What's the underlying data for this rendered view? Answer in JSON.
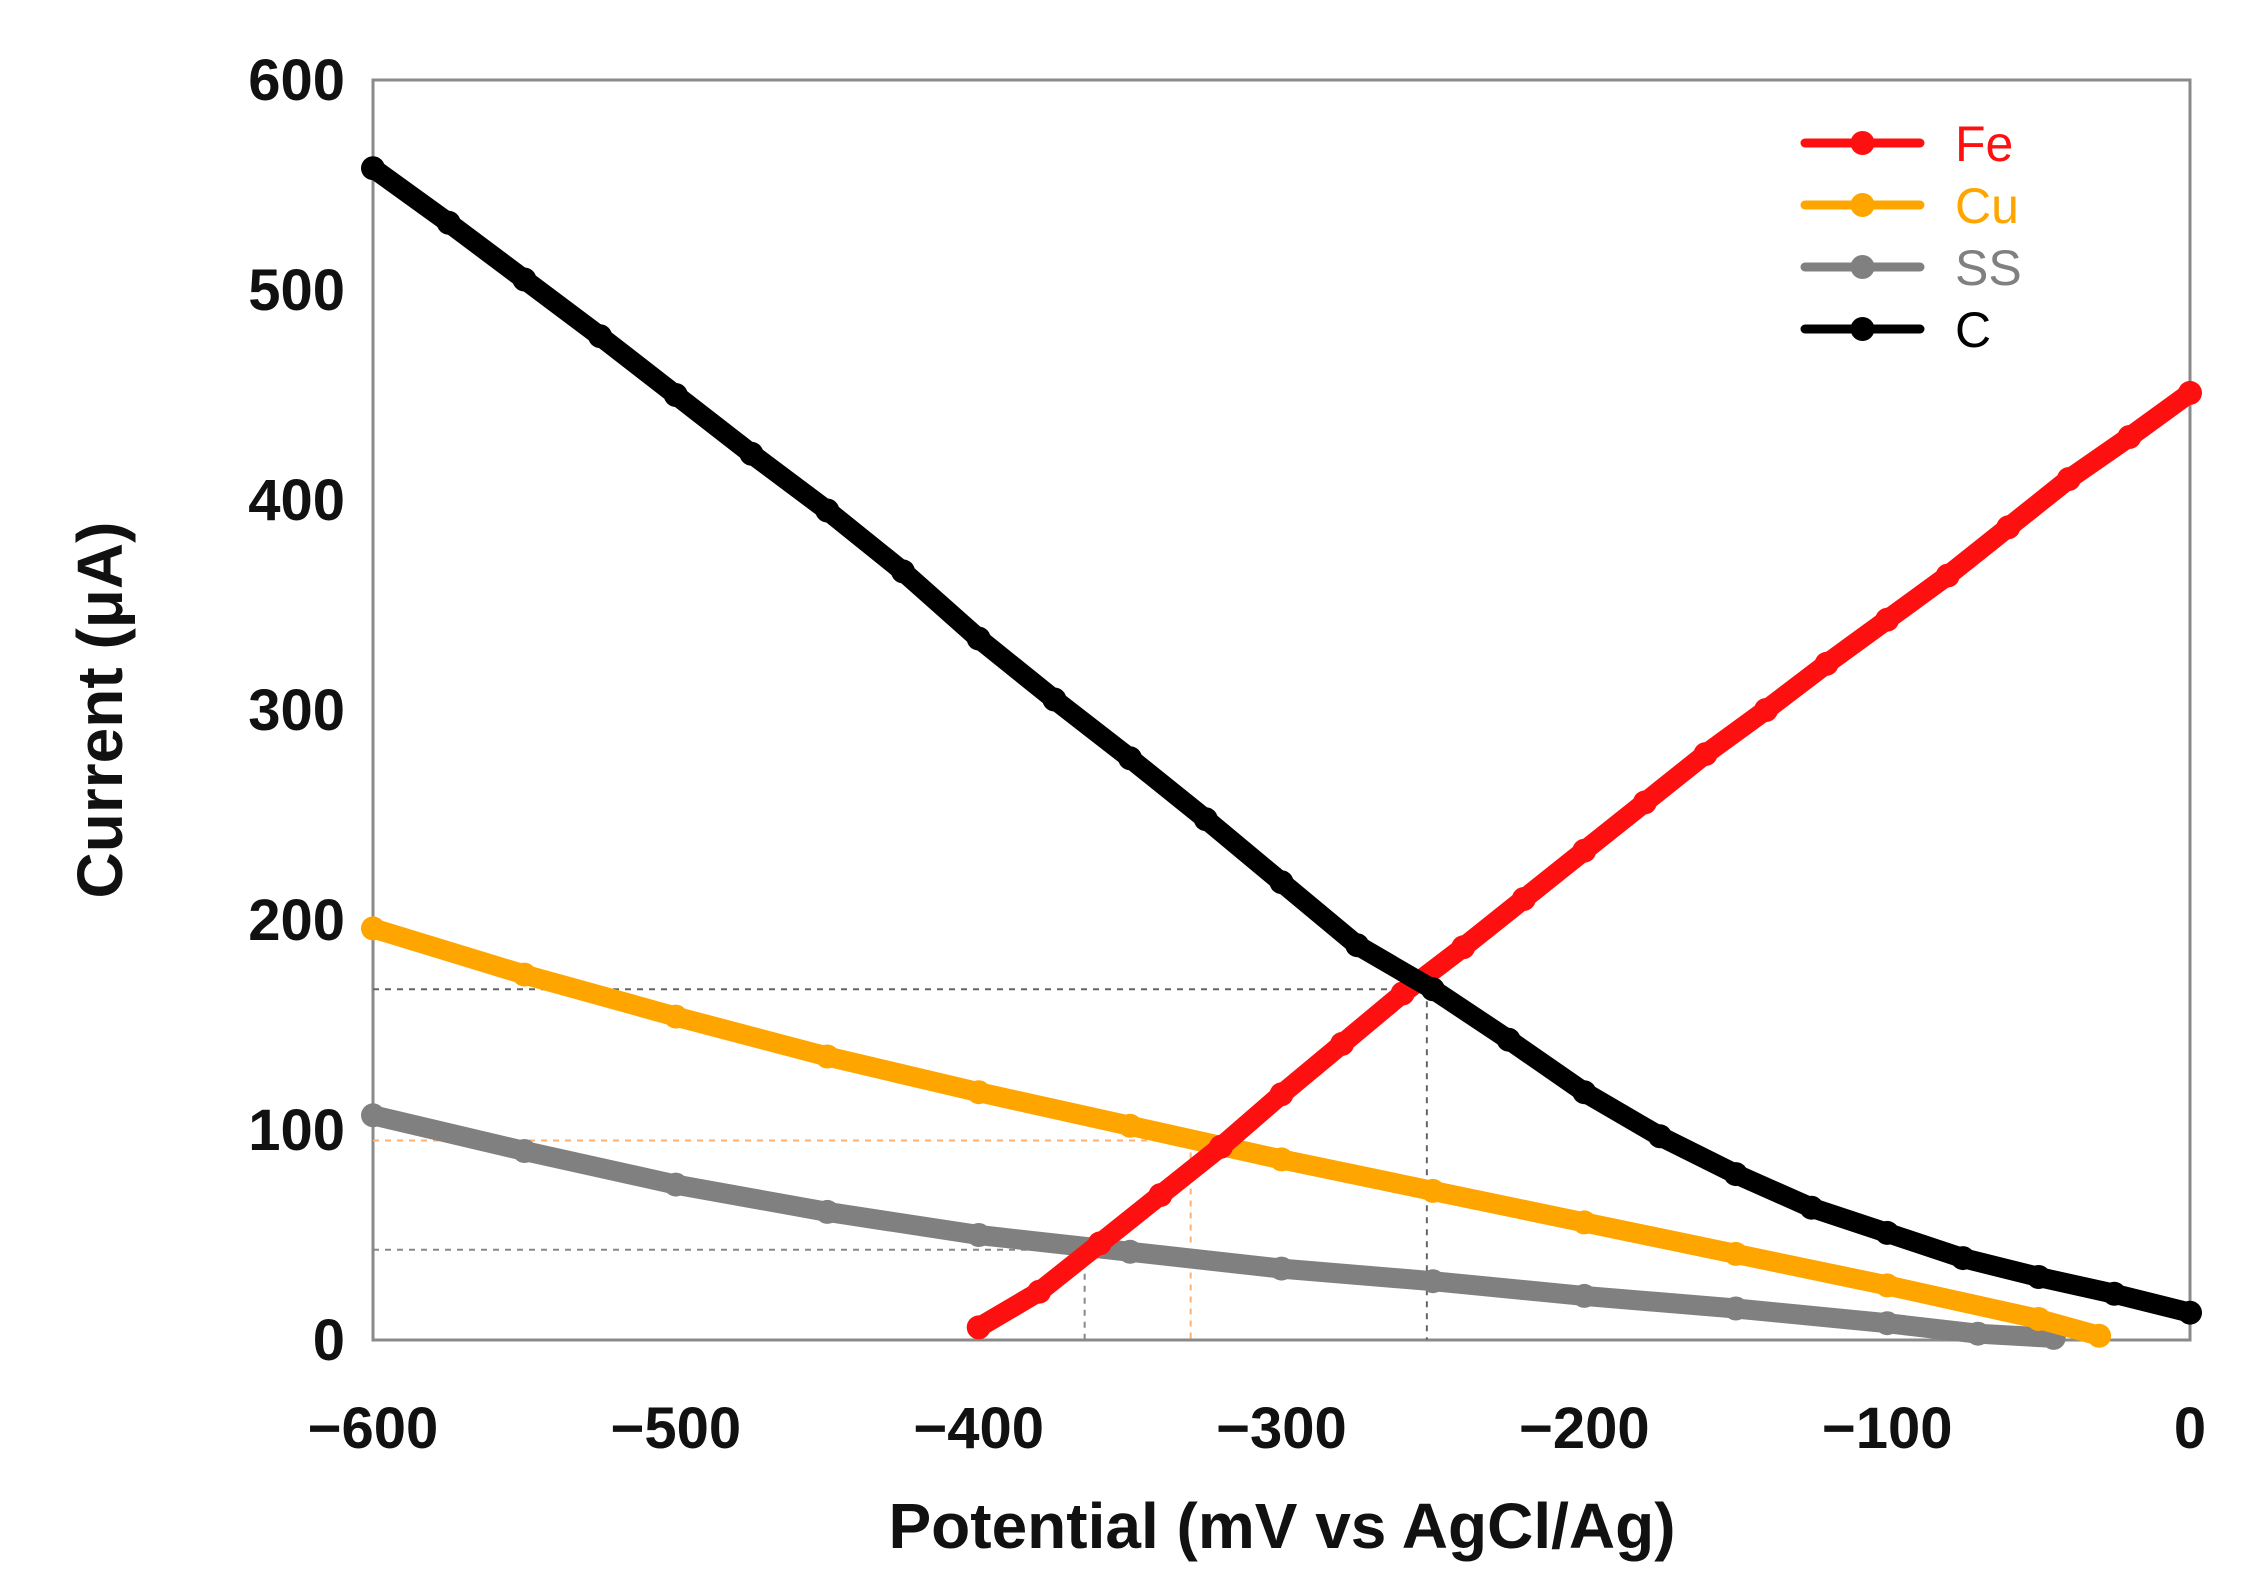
{
  "chart_data": {
    "type": "line",
    "title": "",
    "xlabel": "Potential (mV vs AgCl/Ag)",
    "ylabel": "Current (μA)",
    "xlim": [
      -600,
      0
    ],
    "ylim": [
      0,
      600
    ],
    "xticks": [
      -600,
      -500,
      -400,
      -300,
      -200,
      -100,
      0
    ],
    "xtick_labels": [
      "−600",
      "−500",
      "−400",
      "−300",
      "−200",
      "−100",
      "0"
    ],
    "yticks": [
      0,
      100,
      200,
      300,
      400,
      500,
      600
    ],
    "ytick_labels": [
      "0",
      "100",
      "200",
      "300",
      "400",
      "500",
      "600"
    ],
    "grid": false,
    "legend_position": "top-right",
    "series": [
      {
        "name": "Fe",
        "color": "#ff1010",
        "x": [
          -400,
          -380,
          -360,
          -340,
          -320,
          -300,
          -280,
          -260,
          -240,
          -220,
          -200,
          -180,
          -160,
          -140,
          -120,
          -100,
          -80,
          -60,
          -40,
          -20,
          0
        ],
        "y": [
          6,
          23,
          46,
          69,
          92,
          117,
          141,
          165,
          187,
          210,
          233,
          256,
          279,
          300,
          322,
          343,
          364,
          387,
          410,
          430,
          451
        ]
      },
      {
        "name": "Cu",
        "color": "#ffa500",
        "x": [
          -600,
          -550,
          -500,
          -450,
          -400,
          -350,
          -300,
          -250,
          -200,
          -150,
          -100,
          -50,
          -30
        ],
        "y": [
          196,
          174,
          154,
          135,
          118,
          102,
          86,
          71,
          56,
          41,
          26,
          10,
          2
        ]
      },
      {
        "name": "SS",
        "color": "#808080",
        "x": [
          -600,
          -550,
          -500,
          -450,
          -400,
          -350,
          -300,
          -250,
          -200,
          -150,
          -100,
          -70,
          -45
        ],
        "y": [
          107,
          90,
          74,
          61,
          50,
          42,
          34,
          28,
          21,
          15,
          8,
          3,
          1
        ]
      },
      {
        "name": "C",
        "color": "#000000",
        "x": [
          -600,
          -575,
          -550,
          -525,
          -500,
          -475,
          -450,
          -425,
          -400,
          -375,
          -350,
          -325,
          -300,
          -275,
          -250,
          -225,
          -200,
          -175,
          -150,
          -125,
          -100,
          -75,
          -50,
          -25,
          0
        ],
        "y": [
          558,
          532,
          505,
          478,
          450,
          422,
          395,
          366,
          334,
          305,
          277,
          248,
          218,
          188,
          167,
          143,
          118,
          97,
          79,
          63,
          51,
          39,
          30,
          22,
          13
        ]
      }
    ],
    "reference_lines": [
      {
        "name": "Fe-C intersection",
        "color": "#666666",
        "x": -252,
        "y": 167
      },
      {
        "name": "Fe-Cu intersection",
        "color": "#ffb070",
        "x": -330,
        "y": 95
      },
      {
        "name": "Fe-SS intersection",
        "color": "#888888",
        "x": -365,
        "y": 43
      }
    ]
  }
}
